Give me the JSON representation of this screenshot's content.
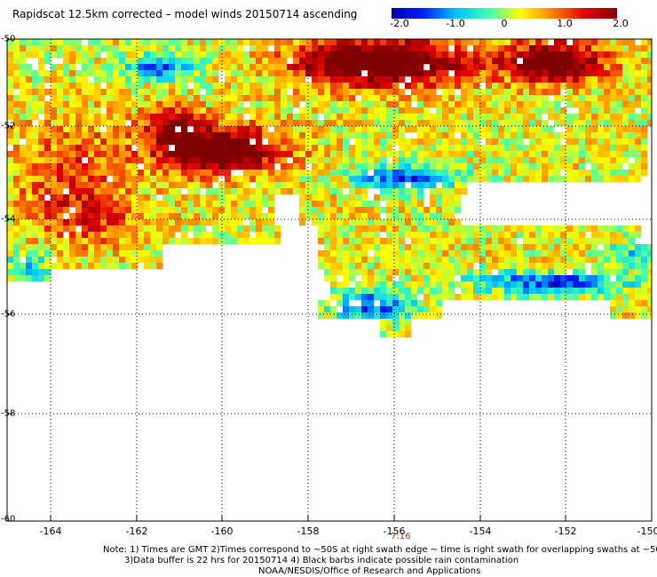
{
  "title": "Rapidscat 12.5km corrected – model winds 20150714 ascending",
  "colorbar": {
    "labels": [
      "-2.0",
      "-1.0",
      "0",
      "1.0",
      "2.0"
    ],
    "min": -2.0,
    "max": 2.0,
    "colors": [
      "#0000a0",
      "#0020ff",
      "#00c0ff",
      "#40ffb0",
      "#ffff00",
      "#ff8000",
      "#e00000",
      "#800000"
    ]
  },
  "axes": {
    "x_ticks": [
      "-164",
      "-162",
      "-160",
      "-158",
      "-156",
      "-154",
      "-152",
      "-150"
    ],
    "y_ticks": [
      "-50",
      "-52",
      "-54",
      "-56",
      "-58",
      "-60"
    ],
    "lon_range": [
      -165,
      -150
    ],
    "lat_range": [
      -60,
      -50
    ],
    "grid": true
  },
  "time_marker": "7:16",
  "notes": {
    "line1": "Note: 1) Times are GMT 2)Times correspond to ~50S at right swath edge ~ time is right swath for overlapping swaths at ~50S",
    "line2": "3)Data buffer is 22 hrs for 20150714 4) Black barbs indicate possible rain contamination",
    "line3": "NOAA/NESDIS/Office of Research and Applications"
  }
}
